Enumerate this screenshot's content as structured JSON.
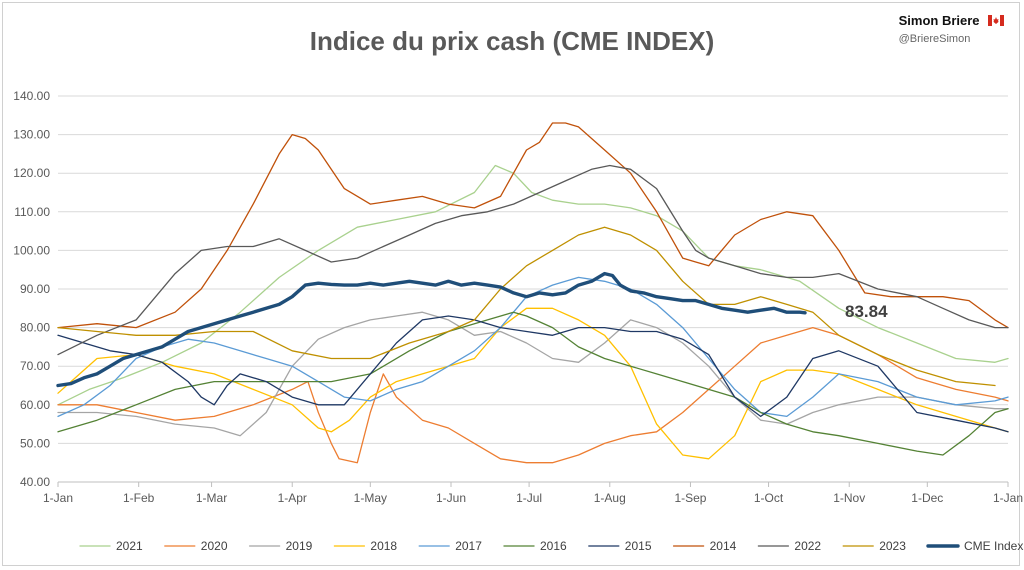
{
  "header": {
    "brand_name": "Simon Briere",
    "brand_handle": "@BriereSimon",
    "flag_icon": "canada-flag-icon"
  },
  "chart_data": {
    "type": "line",
    "title": "Indice du prix cash (CME INDEX)",
    "xlabel": "",
    "ylabel": "",
    "x_unit": "day of year (1-Jan = 0)",
    "xlim": [
      0,
      365
    ],
    "ylim": [
      40,
      140
    ],
    "y_ticks": [
      "40.00",
      "50.00",
      "60.00",
      "70.00",
      "80.00",
      "90.00",
      "100.00",
      "110.00",
      "120.00",
      "130.00",
      "140.00"
    ],
    "y_tick_values": [
      40,
      50,
      60,
      70,
      80,
      90,
      100,
      110,
      120,
      130,
      140
    ],
    "x_ticks": [
      "1-Jan",
      "1-Feb",
      "1-Mar",
      "1-Apr",
      "1-May",
      "1-Jun",
      "1-Jul",
      "1-Aug",
      "1-Sep",
      "1-Oct",
      "1-Nov",
      "1-Dec",
      "1-Jan"
    ],
    "x_tick_values": [
      0,
      31,
      59,
      90,
      120,
      151,
      181,
      212,
      243,
      273,
      304,
      334,
      365
    ],
    "grid": "horizontal",
    "legend_position": "bottom",
    "annotation": {
      "text": "83.84",
      "x": 287,
      "y": 83.84
    },
    "series": [
      {
        "name": "2021",
        "color": "#a9d18e",
        "width": 1.3,
        "x": [
          0,
          12,
          25,
          40,
          55,
          70,
          85,
          100,
          115,
          130,
          145,
          160,
          168,
          175,
          182,
          190,
          200,
          210,
          220,
          230,
          240,
          250,
          260,
          270,
          285,
          300,
          315,
          330,
          345,
          360,
          365
        ],
        "y": [
          60,
          64,
          67,
          71,
          76,
          84,
          93,
          100,
          106,
          108,
          110,
          115,
          122,
          120,
          115,
          113,
          112,
          112,
          111,
          109,
          105,
          98,
          96,
          95,
          92,
          85,
          80,
          76,
          72,
          71,
          72
        ]
      },
      {
        "name": "2020",
        "color": "#ed7d31",
        "width": 1.3,
        "x": [
          0,
          15,
          30,
          45,
          60,
          75,
          90,
          96,
          100,
          105,
          108,
          115,
          120,
          125,
          130,
          140,
          150,
          160,
          170,
          180,
          190,
          200,
          210,
          220,
          230,
          240,
          250,
          260,
          270,
          280,
          290,
          300,
          315,
          330,
          345,
          360,
          365
        ],
        "y": [
          60,
          60,
          58,
          56,
          57,
          60,
          64,
          66,
          58,
          50,
          46,
          45,
          58,
          68,
          62,
          56,
          54,
          50,
          46,
          45,
          45,
          47,
          50,
          52,
          53,
          58,
          64,
          70,
          76,
          78,
          80,
          78,
          73,
          67,
          64,
          62,
          61
        ]
      },
      {
        "name": "2019",
        "color": "#a5a5a5",
        "width": 1.3,
        "x": [
          0,
          15,
          30,
          45,
          60,
          70,
          80,
          90,
          100,
          110,
          120,
          130,
          140,
          150,
          160,
          170,
          180,
          190,
          200,
          210,
          220,
          230,
          240,
          250,
          260,
          270,
          280,
          290,
          300,
          315,
          330,
          345,
          360,
          365
        ],
        "y": [
          58,
          58,
          57,
          55,
          54,
          52,
          58,
          70,
          77,
          80,
          82,
          83,
          84,
          82,
          78,
          79,
          76,
          72,
          71,
          76,
          82,
          80,
          76,
          70,
          62,
          56,
          55,
          58,
          60,
          62,
          62,
          60,
          59,
          59
        ]
      },
      {
        "name": "2018",
        "color": "#ffc000",
        "width": 1.3,
        "x": [
          0,
          15,
          30,
          45,
          60,
          75,
          90,
          100,
          105,
          112,
          120,
          130,
          140,
          150,
          160,
          170,
          180,
          190,
          200,
          210,
          220,
          230,
          240,
          250,
          260,
          270,
          280,
          290,
          300,
          315,
          330,
          345,
          360,
          365
        ],
        "y": [
          63,
          72,
          73,
          70,
          68,
          64,
          60,
          54,
          53,
          56,
          62,
          66,
          68,
          70,
          72,
          80,
          85,
          85,
          82,
          78,
          70,
          55,
          47,
          46,
          52,
          66,
          69,
          69,
          68,
          64,
          60,
          57,
          54,
          53
        ]
      },
      {
        "name": "2017",
        "color": "#5b9bd5",
        "width": 1.3,
        "x": [
          0,
          10,
          20,
          30,
          40,
          50,
          60,
          70,
          80,
          90,
          100,
          110,
          120,
          130,
          140,
          150,
          160,
          170,
          180,
          190,
          200,
          210,
          220,
          230,
          240,
          250,
          260,
          270,
          280,
          290,
          300,
          315,
          330,
          345,
          360,
          365
        ],
        "y": [
          57,
          60,
          65,
          72,
          75,
          77,
          76,
          74,
          72,
          70,
          66,
          62,
          61,
          64,
          66,
          70,
          74,
          80,
          88,
          91,
          93,
          92,
          90,
          86,
          80,
          72,
          64,
          58,
          57,
          62,
          68,
          66,
          62,
          60,
          61,
          62
        ]
      },
      {
        "name": "2016",
        "color": "#548235",
        "width": 1.3,
        "x": [
          0,
          15,
          30,
          45,
          60,
          75,
          90,
          105,
          120,
          135,
          150,
          165,
          175,
          180,
          190,
          200,
          210,
          220,
          230,
          240,
          250,
          260,
          270,
          280,
          290,
          300,
          315,
          330,
          340,
          350,
          360,
          365
        ],
        "y": [
          53,
          56,
          60,
          64,
          66,
          66,
          66,
          66,
          68,
          74,
          79,
          82,
          84,
          83,
          80,
          75,
          72,
          70,
          68,
          66,
          64,
          62,
          58,
          55,
          53,
          52,
          50,
          48,
          47,
          52,
          58,
          59
        ]
      },
      {
        "name": "2015",
        "color": "#1f3864",
        "width": 1.3,
        "x": [
          0,
          10,
          20,
          30,
          40,
          50,
          55,
          60,
          65,
          70,
          80,
          90,
          100,
          110,
          120,
          130,
          140,
          150,
          160,
          170,
          180,
          190,
          200,
          210,
          220,
          230,
          240,
          250,
          260,
          270,
          280,
          290,
          300,
          315,
          330,
          345,
          360,
          365
        ],
        "y": [
          78,
          76,
          74,
          73,
          71,
          66,
          62,
          60,
          65,
          68,
          66,
          62,
          60,
          60,
          68,
          76,
          82,
          83,
          82,
          80,
          79,
          78,
          80,
          80,
          79,
          79,
          77,
          73,
          62,
          57,
          62,
          72,
          74,
          70,
          58,
          56,
          54,
          53
        ]
      },
      {
        "name": "2014",
        "color": "#c0510a",
        "width": 1.3,
        "x": [
          0,
          15,
          30,
          45,
          55,
          65,
          75,
          85,
          90,
          95,
          100,
          110,
          120,
          130,
          140,
          150,
          160,
          170,
          175,
          180,
          185,
          190,
          195,
          200,
          210,
          220,
          230,
          240,
          245,
          250,
          255,
          260,
          270,
          280,
          290,
          300,
          310,
          320,
          330,
          340,
          350,
          360,
          365
        ],
        "y": [
          80,
          81,
          80,
          84,
          90,
          100,
          112,
          125,
          130,
          129,
          126,
          116,
          112,
          113,
          114,
          112,
          111,
          114,
          120,
          126,
          128,
          133,
          133,
          132,
          126,
          120,
          110,
          98,
          97,
          96,
          100,
          104,
          108,
          110,
          109,
          100,
          89,
          88,
          88,
          88,
          87,
          82,
          80
        ]
      },
      {
        "name": "2022",
        "color": "#595959",
        "width": 1.3,
        "x": [
          0,
          15,
          30,
          45,
          55,
          65,
          75,
          85,
          95,
          105,
          115,
          125,
          135,
          145,
          155,
          165,
          175,
          185,
          195,
          205,
          212,
          220,
          230,
          240,
          245,
          250,
          260,
          270,
          280,
          290,
          300,
          315,
          330,
          340,
          350,
          360,
          365
        ],
        "y": [
          73,
          78,
          82,
          94,
          100,
          101,
          101,
          103,
          100,
          97,
          98,
          101,
          104,
          107,
          109,
          110,
          112,
          115,
          118,
          121,
          122,
          121,
          116,
          105,
          100,
          98,
          96,
          94,
          93,
          93,
          94,
          90,
          88,
          85,
          82,
          80,
          80
        ]
      },
      {
        "name": "2023",
        "color": "#bf9000",
        "width": 1.3,
        "x": [
          0,
          15,
          30,
          45,
          60,
          75,
          90,
          105,
          120,
          135,
          150,
          160,
          170,
          180,
          190,
          200,
          210,
          220,
          230,
          240,
          250,
          260,
          270,
          280,
          290,
          300,
          315,
          330,
          345,
          360
        ],
        "y": [
          80,
          79,
          78,
          78,
          79,
          79,
          74,
          72,
          72,
          76,
          79,
          82,
          90,
          96,
          100,
          104,
          106,
          104,
          100,
          92,
          86,
          86,
          88,
          86,
          84,
          78,
          73,
          69,
          66,
          65
        ]
      },
      {
        "name": "CME Index",
        "color": "#1f4e79",
        "width": 3.4,
        "x": [
          0,
          5,
          10,
          15,
          20,
          25,
          30,
          35,
          40,
          45,
          50,
          55,
          60,
          65,
          70,
          75,
          80,
          85,
          90,
          95,
          100,
          105,
          110,
          115,
          120,
          125,
          130,
          135,
          140,
          145,
          150,
          155,
          160,
          165,
          170,
          175,
          180,
          185,
          190,
          195,
          200,
          205,
          210,
          213,
          216,
          220,
          225,
          230,
          235,
          240,
          245,
          250,
          255,
          260,
          265,
          270,
          275,
          280,
          285,
          287
        ],
        "y": [
          65,
          65.5,
          67,
          68,
          70,
          72,
          73,
          74,
          75,
          77,
          79,
          80,
          81,
          82,
          83,
          84,
          85,
          86,
          88,
          91,
          91.5,
          91.2,
          91,
          91,
          91.5,
          91,
          91.5,
          92,
          91.5,
          91,
          92,
          91,
          91.5,
          91,
          90.5,
          89,
          88,
          89,
          88.5,
          89,
          91,
          92,
          94,
          93.5,
          91,
          89.5,
          89,
          88,
          87.5,
          87,
          87,
          86,
          85,
          84.5,
          84,
          84.5,
          85,
          84,
          84,
          83.84
        ]
      }
    ]
  }
}
